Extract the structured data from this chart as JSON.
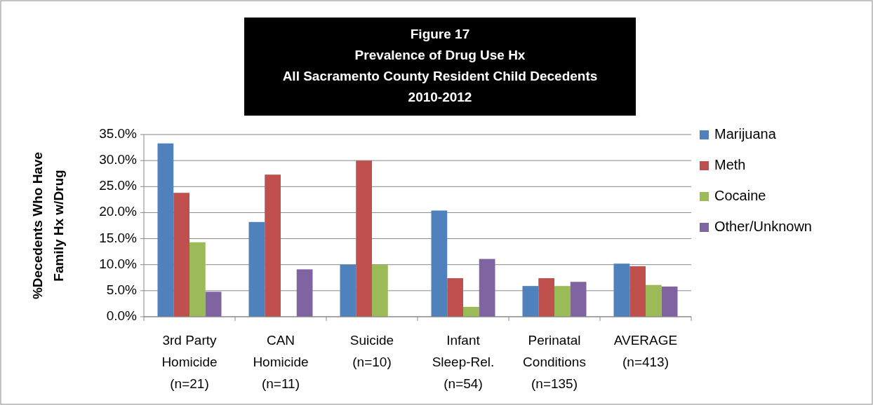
{
  "chart_data": {
    "type": "bar",
    "title": "Figure 17\nPrevalence of Drug Use Hx\nAll Sacramento County Resident Child Decedents\n2010-2012",
    "ylabel": "%Decedents Who Have\nFamily Hx w/Drug",
    "categories": [
      "3rd Party\nHomicide\n(n=21)",
      "CAN\nHomicide\n(n=11)",
      "Suicide\n(n=10)",
      "Infant\nSleep-Rel.\n(n=54)",
      "Perinatal\nConditions\n(n=135)",
      "AVERAGE\n(n=413)"
    ],
    "series": [
      {
        "name": "Marijuana",
        "color": "#4f81bd",
        "values": [
          33.3,
          18.2,
          10.0,
          20.4,
          5.9,
          10.2
        ]
      },
      {
        "name": "Meth",
        "color": "#c0504d",
        "values": [
          23.8,
          27.3,
          30.0,
          7.4,
          7.4,
          9.7
        ]
      },
      {
        "name": "Cocaine",
        "color": "#9bbb59",
        "values": [
          14.3,
          0,
          10.0,
          1.9,
          5.9,
          6.1
        ]
      },
      {
        "name": "Other/Unknown",
        "color": "#8064a2",
        "values": [
          4.8,
          9.1,
          0,
          11.1,
          6.7,
          5.8
        ]
      }
    ],
    "ylim": [
      0,
      35
    ],
    "yticks": [
      {
        "value": 0,
        "label": "0.0%"
      },
      {
        "value": 5,
        "label": "5.0%"
      },
      {
        "value": 10,
        "label": "10.0%"
      },
      {
        "value": 15,
        "label": "15.0%"
      },
      {
        "value": 20,
        "label": "20.0%"
      },
      {
        "value": 25,
        "label": "25.0%"
      },
      {
        "value": 30,
        "label": "30.0%"
      },
      {
        "value": 35,
        "label": "35.0%"
      }
    ],
    "grid": "y",
    "legend": "right"
  }
}
